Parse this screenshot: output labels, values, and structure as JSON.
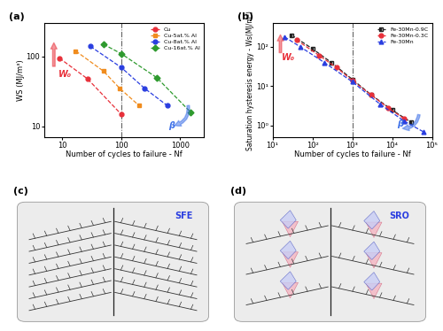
{
  "chart_data": [
    {
      "type": "scatter",
      "title": "(a)",
      "x_label": "Number of cycles to failure - Nf",
      "y_label": "WS (MJ/m³)",
      "log": true,
      "legend": "upper right",
      "xlim": [
        5,
        2500
      ],
      "ylim": [
        7,
        300
      ],
      "xticks": [
        10,
        100,
        1000
      ],
      "yticks": [
        10,
        100
      ],
      "vline": 100,
      "annotations": [
        {
          "text": "W₀",
          "color": "#e8303a"
        },
        {
          "text": "β",
          "color": "#3a6ee8"
        }
      ],
      "series": [
        {
          "name": "Cu",
          "color": "#e8303a",
          "marker": "circle",
          "line_style": "dashed",
          "x": [
            9,
            27,
            100
          ],
          "values": [
            95,
            48,
            15
          ]
        },
        {
          "name": "Cu-5at.% Al",
          "color": "#f08c1e",
          "marker": "square",
          "line_style": "dashed",
          "x": [
            17,
            50,
            95,
            200
          ],
          "values": [
            120,
            62,
            35,
            20
          ]
        },
        {
          "name": "Cu-8at.% Al",
          "color": "#2a3ee0",
          "marker": "circle",
          "line_style": "dashed",
          "x": [
            30,
            100,
            250,
            600
          ],
          "values": [
            140,
            70,
            35,
            20
          ]
        },
        {
          "name": "Cu-16at.% Al",
          "color": "#2e9a2e",
          "marker": "diamond",
          "line_style": "dashed",
          "x": [
            50,
            100,
            400,
            1500
          ],
          "values": [
            150,
            110,
            50,
            16
          ]
        }
      ]
    },
    {
      "type": "scatter",
      "title": "(b)",
      "x_label": "Number of cycles to failure - Nf",
      "y_label": "Saturation hysteresis energy - Ws(MJ/m³)",
      "log": true,
      "legend": "upper right",
      "xlim": [
        10,
        100000
      ],
      "ylim": [
        0.5,
        400
      ],
      "xticks": [
        {
          "value": 10,
          "label": "10¹"
        },
        {
          "value": 100,
          "label": "10²"
        },
        {
          "value": 1000,
          "label": "10³"
        },
        {
          "value": 10000,
          "label": "10⁴"
        },
        {
          "value": 100000,
          "label": "10⁵"
        }
      ],
      "yticks": [
        {
          "value": 1,
          "label": "10⁰"
        },
        {
          "value": 10,
          "label": "10¹"
        },
        {
          "value": 100,
          "label": "10²"
        }
      ],
      "vline": 1000,
      "annotations": [
        {
          "text": "W₀",
          "color": "#e8303a"
        },
        {
          "text": "β",
          "color": "#3a6ee8"
        }
      ],
      "series": [
        {
          "name": "Fe-30Mn-0.9C",
          "color": "#222222",
          "marker": "half_square",
          "line_style": "dashed",
          "x": [
            30,
            100,
            300,
            1000,
            3000,
            10000,
            30000
          ],
          "values": [
            200,
            90,
            40,
            15,
            6,
            2.5,
            1.2
          ]
        },
        {
          "name": "Fe-30Mn-0.3C",
          "color": "#e8303a",
          "marker": "circle",
          "line_style": "dashed",
          "x": [
            40,
            150,
            400,
            1000,
            3000,
            8000,
            20000
          ],
          "values": [
            150,
            60,
            30,
            14,
            6,
            2.8,
            1.5
          ]
        },
        {
          "name": "Fe-30Mn",
          "color": "#2a3ee0",
          "marker": "triangle",
          "line_style": "dashed",
          "x": [
            20,
            50,
            200,
            1000,
            5000,
            20000,
            60000
          ],
          "values": [
            180,
            100,
            40,
            13,
            3.5,
            1.3,
            0.7
          ]
        }
      ]
    }
  ],
  "diagrams": [
    {
      "label": "(c)",
      "text": "SFE"
    },
    {
      "label": "(d)",
      "text": "SRO"
    }
  ]
}
